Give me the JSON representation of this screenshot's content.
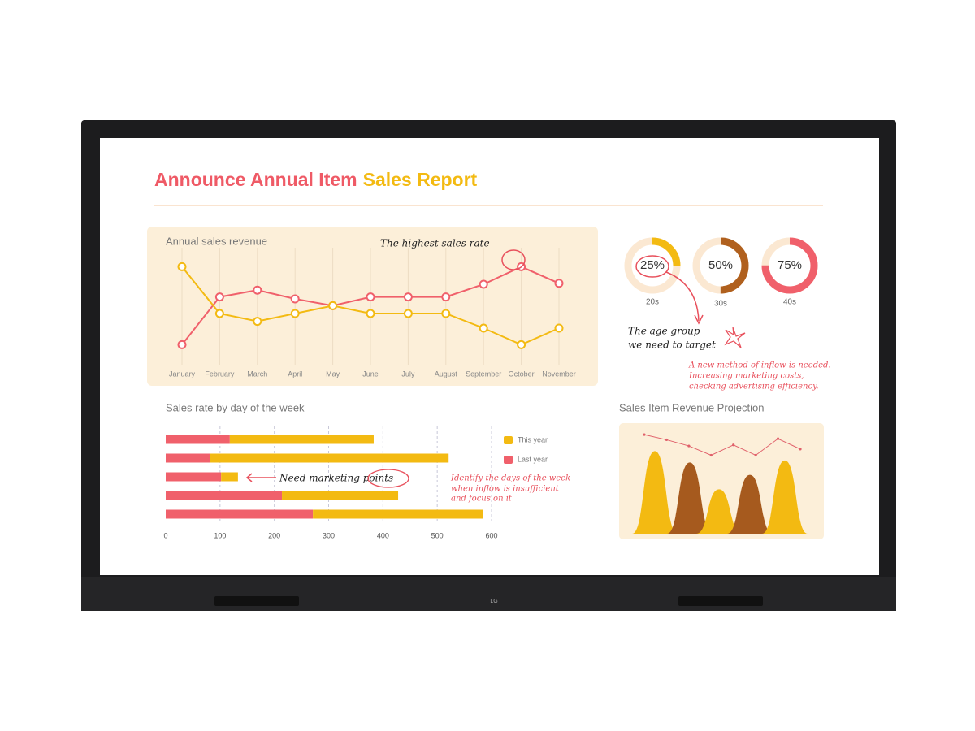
{
  "header": {
    "title": "Announce Annual Item",
    "title_accent": "Sales Report"
  },
  "device": {
    "logo": "LG"
  },
  "chart_data": [
    {
      "type": "line",
      "title": "Annual sales revenue",
      "categories": [
        "January",
        "February",
        "March",
        "April",
        "May",
        "June",
        "July",
        "August",
        "September",
        "October",
        "November"
      ],
      "ylim": [
        0,
        100
      ],
      "grid": true,
      "series": [
        {
          "color": "#f0606b",
          "values": [
            13,
            62,
            69,
            60,
            53,
            62,
            62,
            62,
            75,
            93,
            76
          ]
        },
        {
          "color": "#f3ba12",
          "values": [
            93,
            45,
            37,
            45,
            53,
            45,
            45,
            45,
            30,
            13,
            30
          ]
        }
      ]
    },
    {
      "type": "donut",
      "categories": [
        "20s",
        "30s",
        "40s"
      ],
      "values": [
        25,
        50,
        75
      ],
      "value_labels": [
        "25%",
        "50%",
        "75%"
      ],
      "colors": [
        "#f3ba12",
        "#b0601e",
        "#f0606b"
      ],
      "track_color": "#fbe8d2"
    },
    {
      "type": "bar",
      "orientation": "horizontal",
      "stacked": true,
      "title": "Sales rate by day of the week",
      "categories": [
        null,
        null,
        null,
        null,
        null
      ],
      "xlim": [
        0,
        600
      ],
      "xticks": [
        0,
        100,
        200,
        300,
        400,
        500,
        600
      ],
      "grid": true,
      "legend": "right",
      "series": [
        {
          "name": "Last year",
          "color": "#f0606b",
          "values": [
            118,
            81,
            102,
            214,
            271
          ]
        },
        {
          "name": "This year",
          "color": "#f3ba12",
          "values": [
            265,
            440,
            31,
            214,
            313
          ]
        }
      ]
    },
    {
      "type": "area",
      "title": "Sales Item Revenue Projection",
      "ylim": [
        0,
        100
      ],
      "values": [
        80,
        69,
        43,
        57,
        71
      ],
      "colors": [
        "#f3ba12",
        "#a65a1e",
        "#f3ba12",
        "#a65a1e",
        "#f3ba12"
      ],
      "line": {
        "color": "#e0606a",
        "values": [
          96,
          91,
          85,
          76,
          86,
          76,
          92,
          82
        ]
      }
    }
  ],
  "annotations": {
    "highest": "The highest sales rate",
    "age_group": [
      "The age group",
      "we need to target"
    ],
    "inflow": [
      "A new method of inflow is needed.",
      "Increasing marketing costs,",
      "checking advertising efficiency."
    ],
    "marketing": "Need marketing points",
    "days": [
      "Identify the days of the week",
      "when inflow is insufficient",
      "and focus on it"
    ]
  }
}
